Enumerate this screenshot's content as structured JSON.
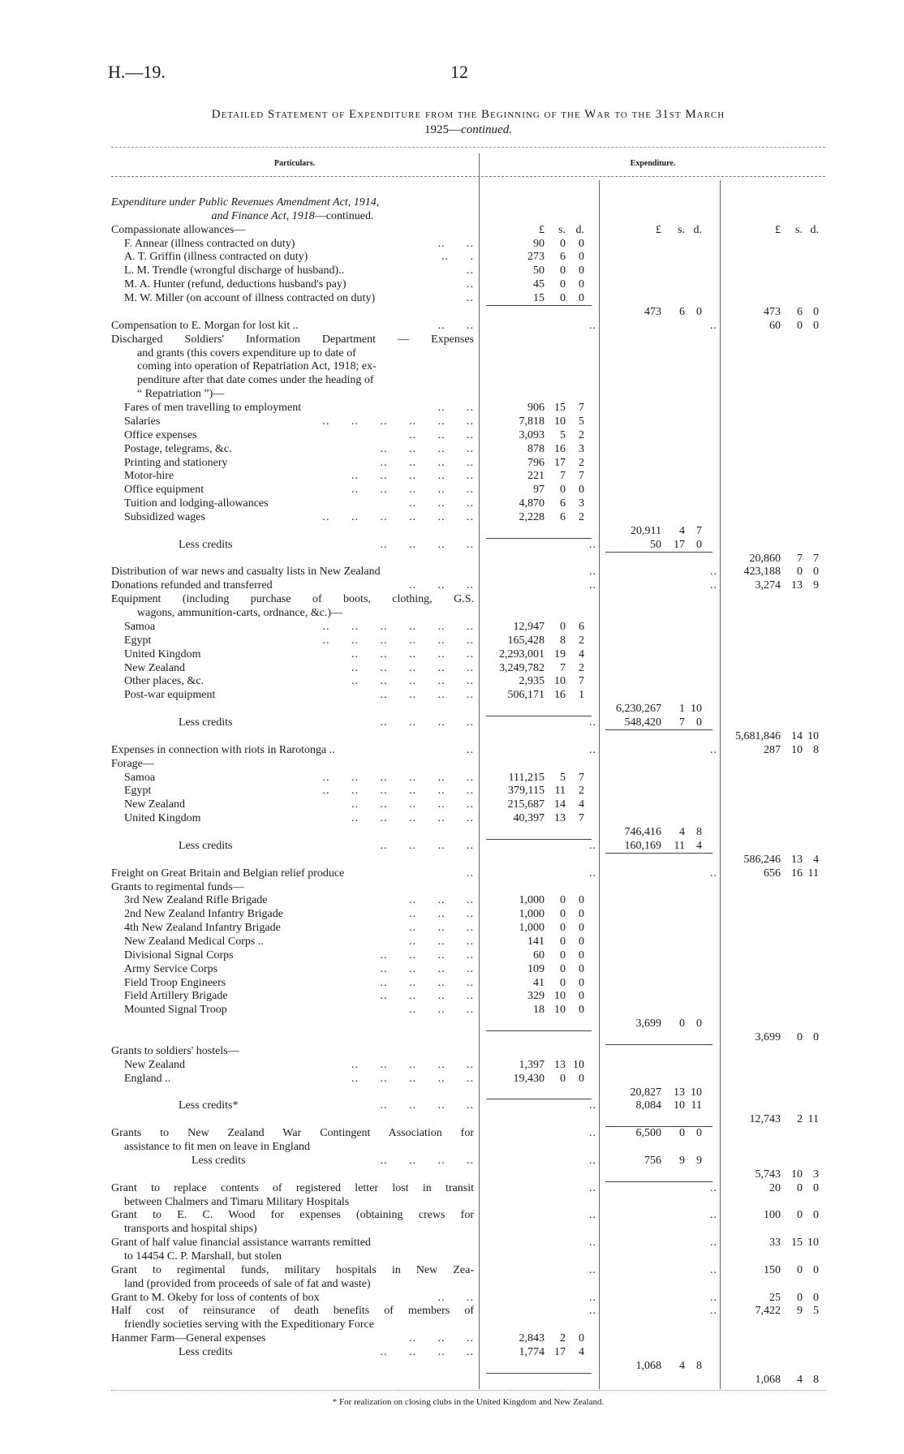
{
  "header": {
    "code": "H.—19.",
    "page_number": "12"
  },
  "title": {
    "line1": "Detailed Statement of Expenditure from the Beginning of the War to the 31st March",
    "line2_year": "1925—",
    "line2_italic": "continued."
  },
  "columns": {
    "particulars": "Particulars.",
    "expenditure": "Expenditure."
  },
  "currency_heads": [
    "£",
    "s.",
    "d."
  ],
  "rows": [
    {
      "t": "Expenditure under Public Revenues Amendment Act, 1914,",
      "k": "italic"
    },
    {
      "t": "and Finance Act, 1918",
      "t2": "—continued.",
      "k": "center"
    },
    {
      "t": "Compassionate allowances—",
      "heads": true
    },
    {
      "t": "F. Annear (illness contracted on duty)",
      "k": "sub",
      "l": "..   ..",
      "a": [
        "90",
        "0",
        "0"
      ]
    },
    {
      "t": "A. T. Griffin (illness contracted on duty)",
      "k": "sub",
      "l": "..   .",
      "a": [
        "273",
        "6",
        "0"
      ]
    },
    {
      "t": "L. M. Trendle (wrongful discharge of husband)..",
      "k": "sub",
      "l": "..",
      "a": [
        "50",
        "0",
        "0"
      ]
    },
    {
      "t": "M. A. Hunter (refund, deductions husband's pay)",
      "k": "sub",
      "l": "..",
      "a": [
        "45",
        "0",
        "0"
      ]
    },
    {
      "t": "M. W. Miller (on account of illness contracted on duty)",
      "k": "sub",
      "l": "..",
      "a": [
        "15",
        "0",
        "0"
      ]
    },
    {
      "t": "",
      "b": [
        "473",
        "6",
        "0"
      ],
      "c": [
        "473",
        "6",
        "0"
      ]
    },
    {
      "t": "Compensation to E. Morgan for lost kit ..",
      "l": "..   ..",
      "a": "..",
      "b": "..",
      "c": [
        "60",
        "0",
        "0"
      ]
    },
    {
      "t": "Discharged Soldiers' Information Department — Expenses",
      "k": "just"
    },
    {
      "t": "and grants (this covers expenditure up to date of",
      "k": "cont"
    },
    {
      "t": "coming into operation of Repatriation Act, 1918; ex-",
      "k": "cont"
    },
    {
      "t": "penditure after that date comes under the heading of",
      "k": "cont"
    },
    {
      "t": "“ Repatriation ”)—",
      "k": "cont"
    },
    {
      "t": "Fares of men travelling to employment",
      "k": "sub",
      "l": "..   ..",
      "a": [
        "906",
        "15",
        "7"
      ]
    },
    {
      "t": "Salaries",
      "k": "sub",
      "l": ".. .. .. .. .. ..",
      "a": [
        "7,818",
        "10",
        "5"
      ]
    },
    {
      "t": "Office expenses",
      "k": "sub",
      "l": ".. .. ..",
      "a": [
        "3,093",
        "5",
        "2"
      ]
    },
    {
      "t": "Postage, telegrams, &c.",
      "k": "sub",
      "l": ".. .. .. ..",
      "a": [
        "878",
        "16",
        "3"
      ]
    },
    {
      "t": "Printing and stationery",
      "k": "sub",
      "l": ".. .. .. ..",
      "a": [
        "796",
        "17",
        "2"
      ]
    },
    {
      "t": "Motor-hire",
      "k": "sub",
      "l": ".. .. .. .. ..",
      "a": [
        "221",
        "7",
        "7"
      ]
    },
    {
      "t": "Office equipment",
      "k": "sub",
      "l": ".. .. .. .. ..",
      "a": [
        "97",
        "0",
        "0"
      ]
    },
    {
      "t": "Tuition and lodging-allowances",
      "k": "sub",
      "l": ".. .. ..",
      "a": [
        "4,870",
        "6",
        "3"
      ]
    },
    {
      "t": "Subsidized wages",
      "k": "sub",
      "l": ".. .. .. .. .. ..",
      "a": [
        "2,228",
        "6",
        "2"
      ]
    },
    {
      "t": "",
      "b": [
        "20,911",
        "4",
        "7"
      ]
    },
    {
      "t": "Less credits",
      "k": "credit",
      "l": ".. .. .. ..",
      "a": "..",
      "b": [
        "50",
        "17",
        "0"
      ]
    },
    {
      "t": "",
      "c": [
        "20,860",
        "7",
        "7"
      ]
    },
    {
      "t": "Distribution of war news and casualty lists in New Zealand",
      "a": "..",
      "b": "..",
      "c": [
        "423,188",
        "0",
        "0"
      ]
    },
    {
      "t": "Donations refunded and transferred",
      "l": ".. .. ..",
      "a": "..",
      "b": "..",
      "c": [
        "3,274",
        "13",
        "9"
      ]
    },
    {
      "t": "Equipment (including purchase of boots, clothing, G.S.",
      "k": "just"
    },
    {
      "t": "wagons, ammunition-carts, ordnance, &c.)—",
      "k": "cont"
    },
    {
      "t": "Samoa",
      "k": "sub",
      "l": ".. .. .. .. .. ..",
      "a": [
        "12,947",
        "0",
        "6"
      ]
    },
    {
      "t": "Egypt",
      "k": "sub",
      "l": ".. .. .. .. .. ..",
      "a": [
        "165,428",
        "8",
        "2"
      ]
    },
    {
      "t": "United Kingdom",
      "k": "sub",
      "l": ".. .. .. .. ..",
      "a": [
        "2,293,001",
        "19",
        "4"
      ]
    },
    {
      "t": "New Zealand",
      "k": "sub",
      "l": ".. .. .. .. ..",
      "a": [
        "3,249,782",
        "7",
        "2"
      ]
    },
    {
      "t": "Other places, &c.",
      "k": "sub",
      "l": ".. .. .. .. ..",
      "a": [
        "2,935",
        "10",
        "7"
      ]
    },
    {
      "t": "Post-war equipment",
      "k": "sub",
      "l": ".. .. .. ..",
      "a": [
        "506,171",
        "16",
        "1"
      ]
    },
    {
      "t": "",
      "b": [
        "6,230,267",
        "1",
        "10"
      ]
    },
    {
      "t": "Less credits",
      "k": "credit",
      "l": ".. .. .. ..",
      "a": "..",
      "b": [
        "548,420",
        "7",
        "0"
      ]
    },
    {
      "t": "",
      "c": [
        "5,681,846",
        "14",
        "10"
      ]
    },
    {
      "t": "Expenses in connection with riots in Rarotonga ..",
      "l": "..",
      "a": "..",
      "b": "..",
      "c": [
        "287",
        "10",
        "8"
      ]
    },
    {
      "t": "Forage—"
    },
    {
      "t": "Samoa",
      "k": "sub",
      "l": ".. .. .. .. .. ..",
      "a": [
        "111,215",
        "5",
        "7"
      ]
    },
    {
      "t": "Egypt",
      "k": "sub",
      "l": ".. .. .. .. .. ..",
      "a": [
        "379,115",
        "11",
        "2"
      ]
    },
    {
      "t": "New Zealand",
      "k": "sub",
      "l": ".. .. .. .. ..",
      "a": [
        "215,687",
        "14",
        "4"
      ]
    },
    {
      "t": "United Kingdom",
      "k": "sub",
      "l": ".. .. .. .. ..",
      "a": [
        "40,397",
        "13",
        "7"
      ]
    },
    {
      "t": "",
      "b": [
        "746,416",
        "4",
        "8"
      ]
    },
    {
      "t": "Less credits",
      "k": "credit",
      "l": ".. .. .. ..",
      "a": "..",
      "b": [
        "160,169",
        "11",
        "4"
      ]
    },
    {
      "t": "",
      "c": [
        "586,246",
        "13",
        "4"
      ]
    },
    {
      "t": "Freight on Great Britain and Belgian relief produce",
      "l": "..",
      "a": "..",
      "b": "..",
      "c": [
        "656",
        "16",
        "11"
      ]
    },
    {
      "t": "Grants to regimental funds—"
    },
    {
      "t": "3rd New Zealand Rifle Brigade",
      "k": "sub",
      "l": ".. .. ..",
      "a": [
        "1,000",
        "0",
        "0"
      ]
    },
    {
      "t": "2nd New Zealand Infantry Brigade",
      "k": "sub",
      "l": ".. .. ..",
      "a": [
        "1,000",
        "0",
        "0"
      ]
    },
    {
      "t": "4th New Zealand Infantry Brigade",
      "k": "sub",
      "l": ".. .. ..",
      "a": [
        "1,000",
        "0",
        "0"
      ]
    },
    {
      "t": "New Zealand Medical Corps ..",
      "k": "sub",
      "l": ".. .. ..",
      "a": [
        "141",
        "0",
        "0"
      ]
    },
    {
      "t": "Divisional Signal Corps",
      "k": "sub",
      "l": ".. .. .. ..",
      "a": [
        "60",
        "0",
        "0"
      ]
    },
    {
      "t": "Army Service Corps",
      "k": "sub",
      "l": ".. .. .. ..",
      "a": [
        "109",
        "0",
        "0"
      ]
    },
    {
      "t": "Field Troop Engineers",
      "k": "sub",
      "l": ".. .. .. ..",
      "a": [
        "41",
        "0",
        "0"
      ]
    },
    {
      "t": "Field Artillery Brigade",
      "k": "sub",
      "l": ".. .. .. ..",
      "a": [
        "329",
        "10",
        "0"
      ]
    },
    {
      "t": "Mounted Signal Troop",
      "k": "sub",
      "l": ".. .. ..",
      "a": [
        "18",
        "10",
        "0"
      ]
    },
    {
      "t": "",
      "b": [
        "3,699",
        "0",
        "0"
      ]
    },
    {
      "t": "",
      "c": [
        "3,699",
        "0",
        "0"
      ]
    },
    {
      "t": "Grants to soldiers' hostels—"
    },
    {
      "t": "New Zealand",
      "k": "sub",
      "l": ".. .. .. .. ..",
      "a": [
        "1,397",
        "13",
        "10"
      ]
    },
    {
      "t": "England ..",
      "k": "sub",
      "l": ".. .. .. .. ..",
      "a": [
        "19,430",
        "0",
        "0"
      ]
    },
    {
      "t": "",
      "b": [
        "20,827",
        "13",
        "10"
      ]
    },
    {
      "t": "Less credits*",
      "k": "credit",
      "l": ".. .. .. ..",
      "a": "..",
      "b": [
        "8,084",
        "10",
        "11"
      ]
    },
    {
      "t": "",
      "c": [
        "12,743",
        "2",
        "11"
      ]
    },
    {
      "t": "Grants to New Zealand War Contingent Association for",
      "k": "just",
      "a": "..",
      "b": [
        "6,500",
        "0",
        "0"
      ]
    },
    {
      "t": "assistance to fit men on leave in England",
      "k": "cont1"
    },
    {
      "t": "Less credits",
      "k": "credit2",
      "l": ".. .. .. ..",
      "a": "..",
      "b": [
        "756",
        "9",
        "9"
      ]
    },
    {
      "t": "",
      "c": [
        "5,743",
        "10",
        "3"
      ]
    },
    {
      "t": "Grant to replace contents of registered letter lost in transit",
      "k": "just",
      "a": "..",
      "b": "..",
      "c": [
        "20",
        "0",
        "0"
      ]
    },
    {
      "t": "between Chalmers and Timaru Military Hospitals",
      "k": "cont1"
    },
    {
      "t": "Grant to E. C. Wood for expenses (obtaining crews for",
      "k": "just",
      "a": "..",
      "b": "..",
      "c": [
        "100",
        "0",
        "0"
      ]
    },
    {
      "t": "transports and hospital ships)",
      "k": "cont1"
    },
    {
      "t": "Grant of half value financial assistance warrants remitted",
      "a": "..",
      "b": "..",
      "c": [
        "33",
        "15",
        "10"
      ]
    },
    {
      "t": "to 14454 C. P. Marshall, but stolen",
      "k": "cont1"
    },
    {
      "t": "Grant to regimental funds, military hospitals in New Zea-",
      "k": "just",
      "a": "..",
      "b": "..",
      "c": [
        "150",
        "0",
        "0"
      ]
    },
    {
      "t": "land (provided from proceeds of sale of fat and waste)",
      "k": "cont1"
    },
    {
      "t": "Grant to M. Okeby for loss of contents of box",
      "l": "..   ..",
      "a": "..",
      "b": "..",
      "c": [
        "25",
        "0",
        "0"
      ]
    },
    {
      "t": "Half cost of reinsurance of death benefits of members of",
      "k": "just",
      "a": "..",
      "b": "..",
      "c": [
        "7,422",
        "9",
        "5"
      ]
    },
    {
      "t": "friendly societies serving with the Expeditionary Force",
      "k": "cont1"
    },
    {
      "t": "Hanmer Farm—General expenses",
      "l": ".. .. ..",
      "a": [
        "2,843",
        "2",
        "0"
      ]
    },
    {
      "t": "Less credits",
      "k": "credit",
      "l": ".. .. .. ..",
      "a": [
        "1,774",
        "17",
        "4"
      ]
    },
    {
      "t": "",
      "b": [
        "1,068",
        "4",
        "8"
      ]
    },
    {
      "t": "",
      "c": [
        "1,068",
        "4",
        "8"
      ]
    }
  ],
  "footnote": "* For realization on closing clubs in the United Kingdom and New Zealand."
}
